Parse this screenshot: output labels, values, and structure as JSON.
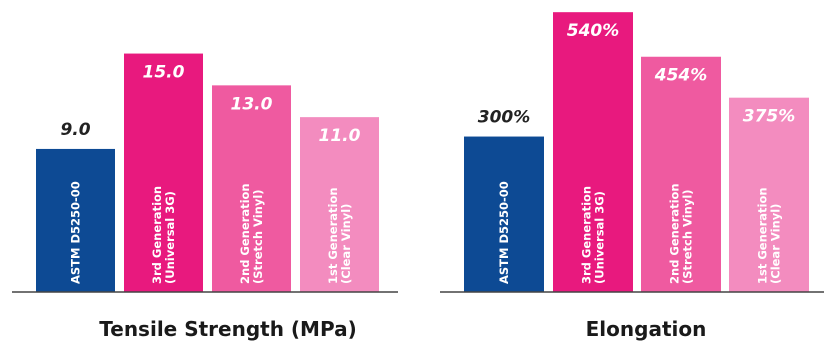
{
  "chart_data": [
    {
      "type": "bar",
      "title": "Tensile Strength (MPa)",
      "categories": [
        "ASTM D5250-00",
        "3rd Generation\n(Universal 3G)",
        "2nd Generation\n(Stretch Vinyl)",
        "1st Generation\n(Clear Vinyl)"
      ],
      "values": [
        9.0,
        15.0,
        13.0,
        11.0
      ],
      "value_labels": [
        "9.0",
        "15.0",
        "13.0",
        "11.0"
      ],
      "ylim": [
        0,
        17.3
      ],
      "grid": false,
      "legend": "none",
      "colors": [
        "#0d4a94",
        "#e8197e",
        "#ef5aa0",
        "#f38cbf"
      ]
    },
    {
      "type": "bar",
      "title": "Elongation",
      "categories": [
        "ASTM D5250-00",
        "3rd Generation\n(Universal 3G)",
        "2nd Generation\n(Stretch Vinyl)",
        "1st Generation\n(Clear Vinyl)"
      ],
      "values": [
        300,
        540,
        454,
        375
      ],
      "value_labels": [
        "300%",
        "540%",
        "454%",
        "375%"
      ],
      "ylim": [
        0,
        550
      ],
      "grid": false,
      "legend": "none",
      "colors": [
        "#0d4a94",
        "#e8197e",
        "#ef5aa0",
        "#f38cbf"
      ]
    }
  ]
}
